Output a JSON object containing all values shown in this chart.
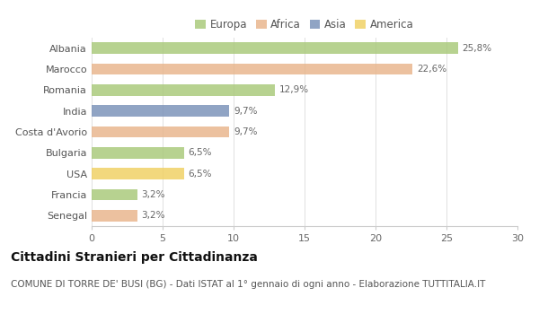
{
  "categories": [
    "Albania",
    "Marocco",
    "Romania",
    "India",
    "Costa d'Avorio",
    "Bulgaria",
    "USA",
    "Francia",
    "Senegal"
  ],
  "values": [
    25.8,
    22.6,
    12.9,
    9.7,
    9.7,
    6.5,
    6.5,
    3.2,
    3.2
  ],
  "labels": [
    "25,8%",
    "22,6%",
    "12,9%",
    "9,7%",
    "9,7%",
    "6,5%",
    "6,5%",
    "3,2%",
    "3,2%"
  ],
  "continents": [
    "Europa",
    "Africa",
    "Europa",
    "Asia",
    "Africa",
    "Europa",
    "America",
    "Europa",
    "Africa"
  ],
  "colors": {
    "Europa": "#a8c878",
    "Africa": "#e8b48a",
    "Asia": "#7890b8",
    "America": "#f0d060"
  },
  "legend_order": [
    "Europa",
    "Africa",
    "Asia",
    "America"
  ],
  "title": "Cittadini Stranieri per Cittadinanza",
  "subtitle": "COMUNE DI TORRE DE' BUSI (BG) - Dati ISTAT al 1° gennaio di ogni anno - Elaborazione TUTTITALIA.IT",
  "xlim": [
    0,
    30
  ],
  "xticks": [
    0,
    5,
    10,
    15,
    20,
    25,
    30
  ],
  "background_color": "#ffffff",
  "bar_height": 0.55,
  "title_fontsize": 10,
  "subtitle_fontsize": 7.5,
  "label_fontsize": 7.5,
  "tick_fontsize": 8,
  "legend_fontsize": 8.5
}
